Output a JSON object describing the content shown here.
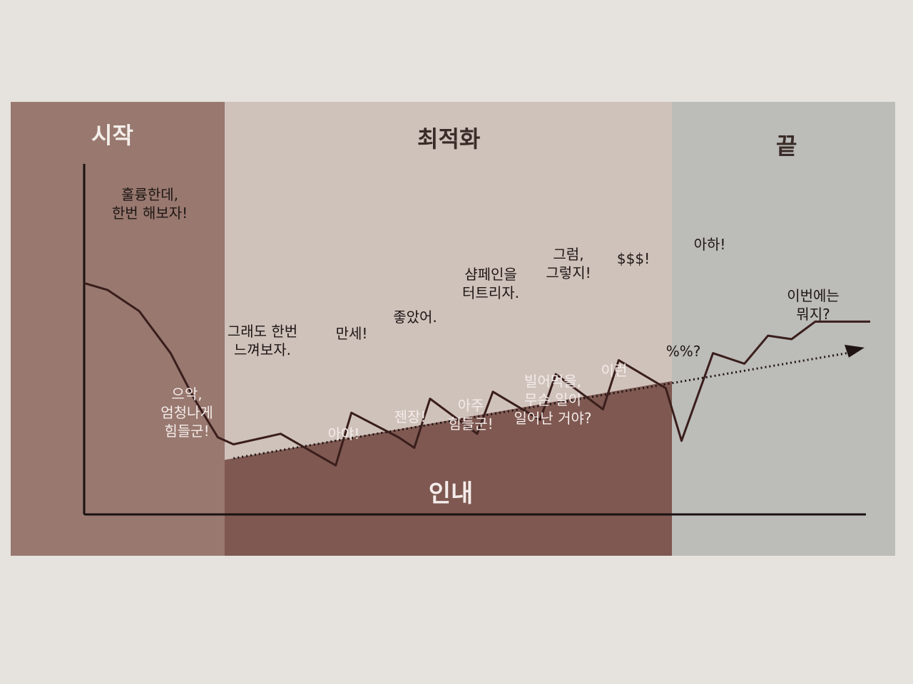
{
  "zones": {
    "start": "시작",
    "optimize": "최적화",
    "end": "끝"
  },
  "patience_label": "인내",
  "labels": {
    "great_try": [
      "훌륭한데,",
      "한번 해보자!"
    ],
    "ugh_hard": [
      "으악,",
      "엄청나게",
      "힘들군!"
    ],
    "feel_it": [
      "그래도 한번",
      "느껴보자."
    ],
    "ouch": [
      "아야!"
    ],
    "hurray": [
      "만세!"
    ],
    "damn": [
      "젠장!"
    ],
    "good": [
      "좋았어."
    ],
    "very_hard": [
      "아주",
      "힘들군!"
    ],
    "champagne": [
      "샴페인을",
      "터트리자."
    ],
    "dang_it": [
      "빌어먹을,",
      "무슨 일이",
      "일어난 거야?"
    ],
    "of_course": [
      "그럼,",
      "그렇지!"
    ],
    "this": [
      "이런"
    ],
    "money": [
      "$$$!"
    ],
    "what": [
      "%%?"
    ],
    "aha": [
      "아하!"
    ],
    "whats_next": [
      "이번에는",
      "뭐지?"
    ]
  },
  "colors": {
    "start_zone": "#98786f",
    "optimize_top": "#cfc2bb",
    "optimize_bottom": "#7e5851",
    "end_zone": "#bcbcb9",
    "line": "#3a1e1c"
  },
  "chart_data": {
    "type": "line",
    "description_free": true,
    "curve": [
      {
        "x": 0,
        "y": 66
      },
      {
        "x": 3,
        "y": 64
      },
      {
        "x": 7,
        "y": 58
      },
      {
        "x": 11,
        "y": 46
      },
      {
        "x": 14,
        "y": 33
      },
      {
        "x": 17,
        "y": 22
      },
      {
        "x": 19,
        "y": 20
      },
      {
        "x": 25,
        "y": 23
      },
      {
        "x": 32,
        "y": 14
      },
      {
        "x": 34,
        "y": 29
      },
      {
        "x": 40,
        "y": 22
      },
      {
        "x": 42,
        "y": 19
      },
      {
        "x": 44,
        "y": 33
      },
      {
        "x": 50,
        "y": 23
      },
      {
        "x": 52,
        "y": 35
      },
      {
        "x": 58,
        "y": 27
      },
      {
        "x": 60,
        "y": 40
      },
      {
        "x": 66,
        "y": 30
      },
      {
        "x": 68,
        "y": 44
      },
      {
        "x": 74,
        "y": 36
      },
      {
        "x": 76,
        "y": 21
      },
      {
        "x": 80,
        "y": 46
      },
      {
        "x": 84,
        "y": 43
      },
      {
        "x": 87,
        "y": 51
      },
      {
        "x": 90,
        "y": 50
      },
      {
        "x": 93,
        "y": 55
      },
      {
        "x": 100,
        "y": 55
      }
    ],
    "trend": [
      {
        "x": 19,
        "y": 16
      },
      {
        "x": 100,
        "y": 48
      }
    ]
  }
}
